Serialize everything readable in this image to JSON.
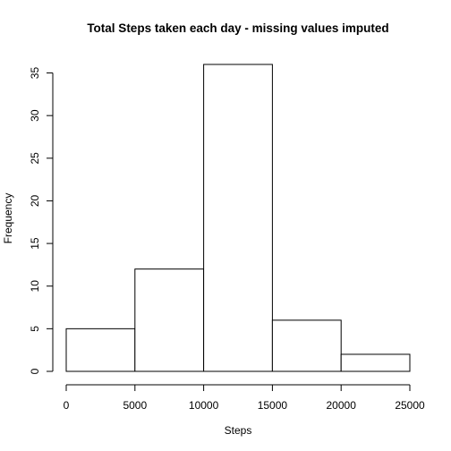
{
  "chart_data": {
    "type": "bar",
    "title": "Total Steps taken each day - missing values imputed",
    "xlabel": "Steps",
    "ylabel": "Frequency",
    "bins": [
      {
        "from": 0,
        "to": 5000,
        "count": 5
      },
      {
        "from": 5000,
        "to": 10000,
        "count": 12
      },
      {
        "from": 10000,
        "to": 15000,
        "count": 36
      },
      {
        "from": 15000,
        "to": 20000,
        "count": 6
      },
      {
        "from": 20000,
        "to": 25000,
        "count": 2
      }
    ],
    "xticks": [
      0,
      5000,
      10000,
      15000,
      20000,
      25000
    ],
    "xtick_labels": [
      "0",
      "5000",
      "10000",
      "15000",
      "20000",
      "25000"
    ],
    "yticks": [
      0,
      5,
      10,
      15,
      20,
      25,
      30,
      35
    ],
    "ytick_labels": [
      "0",
      "5",
      "10",
      "15",
      "20",
      "25",
      "30",
      "35"
    ],
    "xlim": [
      0,
      25000
    ],
    "ylim": [
      0,
      36
    ],
    "grid": false,
    "legend": "none"
  }
}
